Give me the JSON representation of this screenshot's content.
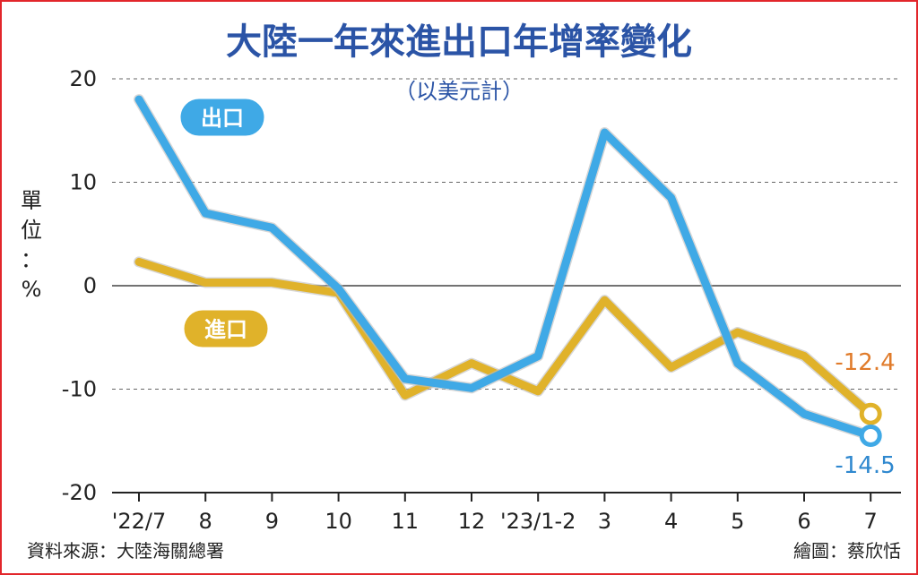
{
  "chart_data": {
    "type": "line",
    "title": "大陸一年來進出口年增率變化",
    "subtitle": "（以美元計）",
    "ylabel_chars": [
      "單",
      "位",
      "：",
      "%"
    ],
    "categories": [
      "'22/7",
      "8",
      "9",
      "10",
      "11",
      "12",
      "'23/1-2",
      "3",
      "4",
      "5",
      "6",
      "7"
    ],
    "ylim": [
      -20,
      20
    ],
    "yticks": [
      "20",
      "10",
      "0",
      "-10",
      "-20"
    ],
    "series": [
      {
        "name": "出口",
        "color": "#3fa9e6",
        "values": [
          18.0,
          7.0,
          5.6,
          -0.3,
          -9.0,
          -9.9,
          -6.8,
          14.8,
          8.5,
          -7.5,
          -12.4,
          -14.5
        ],
        "end_label": "-14.5"
      },
      {
        "name": "進口",
        "color": "#e0b22a",
        "values": [
          2.3,
          0.3,
          0.3,
          -0.7,
          -10.6,
          -7.5,
          -10.2,
          -1.4,
          -7.9,
          -4.5,
          -6.8,
          -12.4
        ],
        "end_label": "-12.4"
      }
    ],
    "end_label_colors": {
      "export": "#2f88cf",
      "import": "#e07b2a"
    },
    "grid": true
  },
  "footer": {
    "source": "資料來源：大陸海關總署",
    "credit": "繪圖：蔡欣恬"
  },
  "colors": {
    "title": "#2b54a6",
    "frame": "#e2262b"
  }
}
